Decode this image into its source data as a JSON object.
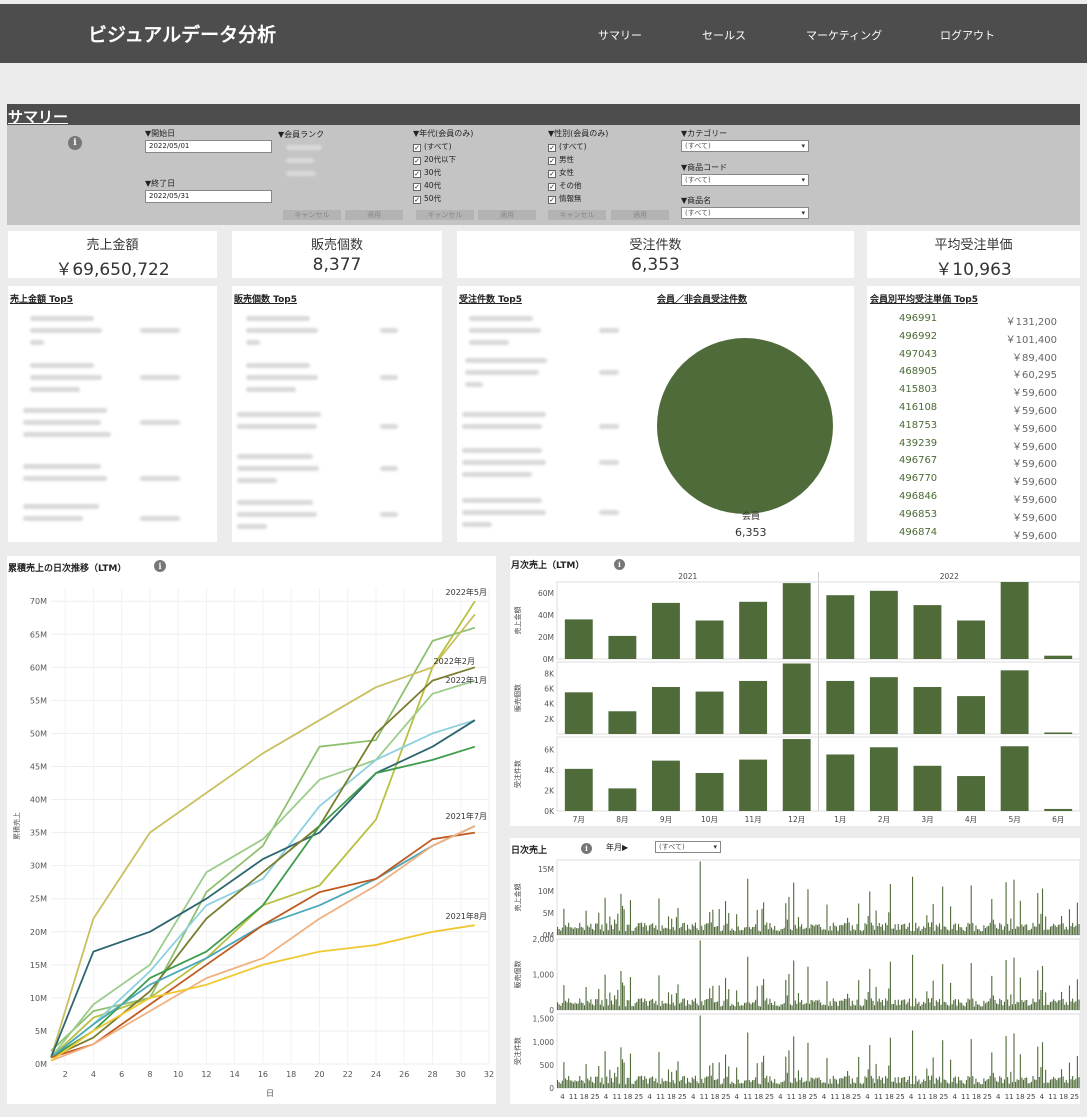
{
  "header": {
    "title": "ビジュアルデータ分析",
    "nav": [
      "サマリー",
      "セールス",
      "マーケティング",
      "ログアウト"
    ]
  },
  "summary": {
    "title": "サマリー",
    "info_icon": "info-icon",
    "filters": {
      "start_label": "▼開始日",
      "start_value": "2022/05/01",
      "end_label": "▼終了日",
      "end_value": "2022/05/31",
      "rank_label": "▼会員ランク",
      "age_label": "▼年代(会員のみ)",
      "age_options": [
        "(すべて)",
        "20代以下",
        "30代",
        "40代",
        "50代"
      ],
      "gender_label": "▼性別(会員のみ)",
      "gender_options": [
        "(すべて)",
        "男性",
        "女性",
        "その他",
        "情報無"
      ],
      "category_label": "▼カテゴリー",
      "category_value": "(すべて)",
      "code_label": "▼商品コード",
      "code_value": "(すべて)",
      "name_label": "▼商品名",
      "name_value": "(すべて)",
      "cancel_label": "キャンセル",
      "apply_label": "適用"
    }
  },
  "kpis": [
    {
      "label": "売上金額",
      "value": "￥69,650,722"
    },
    {
      "label": "販売個数",
      "value": "8,377"
    },
    {
      "label": "受注件数",
      "value": "6,353"
    },
    {
      "label": "平均受注単価",
      "value": "￥10,963"
    }
  ],
  "top5": {
    "sales_title": "売上金額 Top5",
    "qty_title": "販売個数 Top5",
    "orders_title": "受注件数 Top5",
    "member_title": "会員／非会員受注件数",
    "avg_title": "会員別平均受注単価 Top5"
  },
  "member_pie": {
    "label": "会員",
    "value": "6,353",
    "color": "#4f6b3a"
  },
  "avg_top5": [
    {
      "id": "496991",
      "amount": "￥131,200"
    },
    {
      "id": "496992",
      "amount": "￥101,400"
    },
    {
      "id": "497043",
      "amount": "￥89,400"
    },
    {
      "id": "468905",
      "amount": "￥60,295"
    },
    {
      "id": "415803",
      "amount": "￥59,600"
    },
    {
      "id": "416108",
      "amount": "￥59,600"
    },
    {
      "id": "418753",
      "amount": "￥59,600"
    },
    {
      "id": "439239",
      "amount": "￥59,600"
    },
    {
      "id": "496767",
      "amount": "￥59,600"
    },
    {
      "id": "496770",
      "amount": "￥59,600"
    },
    {
      "id": "496846",
      "amount": "￥59,600"
    },
    {
      "id": "496853",
      "amount": "￥59,600"
    },
    {
      "id": "496874",
      "amount": "￥59,600"
    }
  ],
  "cumulative": {
    "title": "累積売上の日次推移（LTM）",
    "ylabel": "累積売上",
    "xlabel": "日",
    "yticks": [
      "0M",
      "5M",
      "10M",
      "15M",
      "20M",
      "25M",
      "30M",
      "35M",
      "40M",
      "45M",
      "50M",
      "55M",
      "60M",
      "65M",
      "70M"
    ],
    "xticks": [
      "2",
      "4",
      "6",
      "8",
      "10",
      "12",
      "14",
      "16",
      "18",
      "20",
      "22",
      "24",
      "26",
      "28",
      "30",
      "32"
    ],
    "annotations": [
      "2022年5月",
      "2022年2月",
      "2022年1月",
      "2021年7月",
      "2021年8月"
    ]
  },
  "monthly": {
    "title": "月次売上（LTM）",
    "year_labels": [
      "2021",
      "2022"
    ],
    "months": [
      "7月",
      "8月",
      "9月",
      "10月",
      "11月",
      "12月",
      "1月",
      "2月",
      "3月",
      "4月",
      "5月",
      "6月"
    ],
    "row_labels": [
      "売上金額",
      "販売個数",
      "受注件数"
    ],
    "ticks_sales": [
      "0M",
      "20M",
      "40M",
      "60M"
    ],
    "ticks_qty": [
      "2K",
      "4K",
      "6K",
      "8K"
    ],
    "ticks_orders": [
      "0K",
      "2K",
      "4K",
      "6K"
    ]
  },
  "daily": {
    "title": "日次売上",
    "year_month_label": "年月▶",
    "year_month_value": "(すべて)",
    "row_labels": [
      "売上金額",
      "販売個数",
      "受注件数"
    ],
    "ticks_sales": [
      "0M",
      "5M",
      "10M",
      "15M"
    ],
    "ticks_qty": [
      "0",
      "1,000",
      "2,000"
    ],
    "ticks_orders": [
      "0",
      "500",
      "1,000",
      "1,500"
    ],
    "xtick_pattern": [
      "4",
      "11",
      "18",
      "25"
    ]
  },
  "chart_data": [
    {
      "type": "bar",
      "title": "月次売上（LTM）",
      "categories": [
        "2021-07",
        "2021-08",
        "2021-09",
        "2021-10",
        "2021-11",
        "2021-12",
        "2022-01",
        "2022-02",
        "2022-03",
        "2022-04",
        "2022-05",
        "2022-06"
      ],
      "series": [
        {
          "name": "売上金額",
          "values": [
            36,
            21,
            51,
            35,
            52,
            69,
            58,
            62,
            49,
            35,
            70,
            3
          ],
          "ylim": [
            0,
            70
          ]
        },
        {
          "name": "販売個数",
          "values": [
            5.5,
            3.0,
            6.2,
            5.6,
            7.0,
            9.3,
            7.0,
            7.5,
            6.2,
            5.0,
            8.4,
            0.2
          ],
          "ylim": [
            0,
            9.5
          ]
        },
        {
          "name": "受注件数",
          "values": [
            4.1,
            2.2,
            4.9,
            3.7,
            5.0,
            7.0,
            5.5,
            6.2,
            4.4,
            3.4,
            6.3,
            0.2
          ],
          "ylim": [
            0,
            7.2
          ]
        }
      ],
      "color": "#4f6b3a"
    },
    {
      "type": "line",
      "title": "累積売上の日次推移（LTM）",
      "x": [
        1,
        4,
        8,
        12,
        16,
        20,
        24,
        28,
        31
      ],
      "ylim": [
        0,
        72
      ],
      "xlim": [
        1,
        32
      ],
      "series": [
        {
          "name": "2022年5月",
          "color": "#b8c040",
          "values": [
            1,
            7,
            10,
            16,
            24,
            27,
            37,
            60,
            70
          ]
        },
        {
          "name": "2022年2月",
          "color": "#8fc070",
          "values": [
            2,
            8,
            10,
            26,
            33,
            48,
            49,
            64,
            66
          ]
        },
        {
          "values": [
            1,
            22,
            35,
            41,
            47,
            52,
            57,
            60,
            68
          ],
          "color": "#c9c060"
        },
        {
          "name": "2022年1月",
          "color": "#9ccc8c",
          "values": [
            1,
            9,
            15,
            29,
            34,
            43,
            46,
            56,
            58
          ]
        },
        {
          "values": [
            1,
            6,
            14,
            24,
            28,
            39,
            46,
            50,
            52
          ],
          "color": "#8dd0e0"
        },
        {
          "values": [
            1,
            17,
            20,
            25,
            31,
            35,
            44,
            48,
            52
          ],
          "color": "#2e6670"
        },
        {
          "values": [
            1,
            4,
            11,
            22,
            29,
            36,
            50,
            58,
            60
          ],
          "color": "#7a7d2e"
        },
        {
          "values": [
            1,
            5,
            13,
            17,
            24,
            36,
            44,
            46,
            48
          ],
          "color": "#3d9c4c"
        },
        {
          "name": "2021年7月",
          "color": "#4aa8b8",
          "values": [
            1,
            6,
            12,
            16,
            21,
            24,
            28,
            33,
            36
          ]
        },
        {
          "values": [
            1,
            3,
            9,
            15,
            21,
            26,
            28,
            34,
            35
          ],
          "color": "#c05a20"
        },
        {
          "values": [
            0.5,
            3,
            8,
            13,
            16,
            22,
            27,
            33,
            36
          ],
          "color": "#f0b080"
        },
        {
          "name": "2021年8月",
          "color": "#f0c830",
          "values": [
            0.5,
            5,
            10,
            12,
            15,
            17,
            18,
            20,
            21
          ]
        }
      ]
    }
  ]
}
